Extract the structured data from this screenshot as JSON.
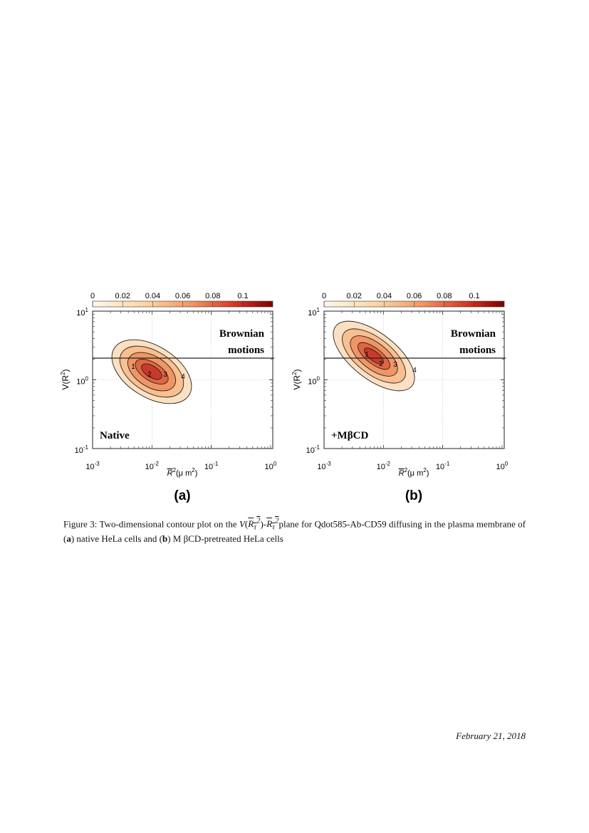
{
  "figure": {
    "colorbar_ticks": [
      "0",
      "0.02",
      "0.04",
      "0.06",
      "0.08",
      "0.1"
    ],
    "y_ticks": [
      {
        "base": "10",
        "exp": "1"
      },
      {
        "base": "10",
        "exp": "0"
      },
      {
        "base": "10",
        "exp": "-1"
      }
    ],
    "x_ticks": [
      {
        "base": "10",
        "exp": "-3"
      },
      {
        "base": "10",
        "exp": "-2"
      },
      {
        "base": "10",
        "exp": "-1"
      },
      {
        "base": "10",
        "exp": "0"
      }
    ],
    "y_label": {
      "pre": "V(R",
      "exp": "2",
      "post": ")"
    },
    "x_label": {
      "pre": "R",
      "exp": "2",
      "unit": "(μ m",
      "unit_exp": "2",
      "post": ")"
    },
    "region_label": [
      "Brownian",
      "motions"
    ],
    "panels": [
      {
        "label": "(a)",
        "annotation": "Native",
        "contour_labels": [
          "1",
          "2",
          "3",
          "4"
        ]
      },
      {
        "label": "(b)",
        "annotation": "+MβCD",
        "contour_labels": [
          "1",
          "2",
          "3",
          "4"
        ]
      }
    ]
  },
  "caption": {
    "lead": "Figure 3:  Two-dimensional contour plot on the ",
    "v": "V",
    "r": "R",
    "tau": "τ",
    "sq": "2",
    "open": "(",
    "close": ")-",
    "mid": "plane for Qdot585-Ab-CD59 diffusing in the plasma membrane of (",
    "a": "a",
    "mid2": ") native HeLa cells and (",
    "b": "b",
    "end": ") M βCD-pretreated HeLa cells"
  },
  "footer": {
    "date": "February 21, 2018"
  }
}
